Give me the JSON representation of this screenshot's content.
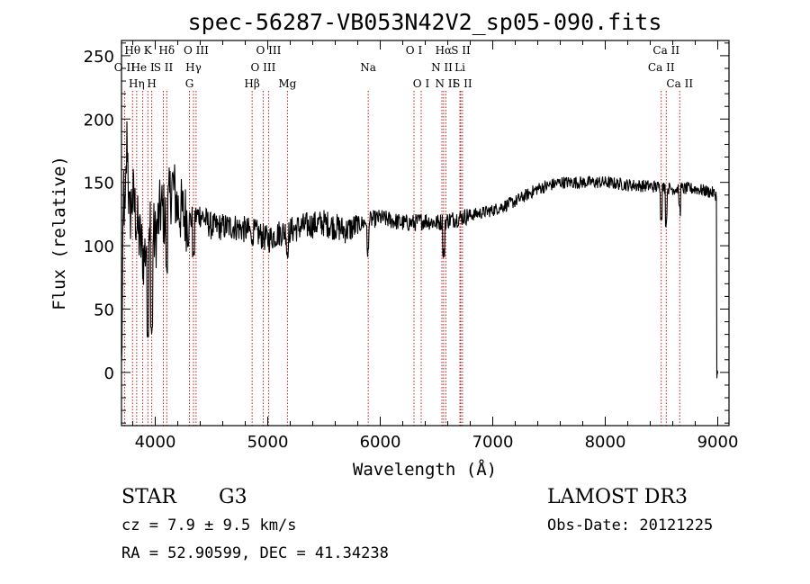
{
  "chart_data": {
    "type": "line",
    "title": "spec-56287-VB053N42V2_sp05-090.fits",
    "xlabel": "Wavelength (Å)",
    "ylabel": "Flux (relative)",
    "xlim": [
      3700,
      9100
    ],
    "ylim": [
      -42,
      262
    ],
    "xticks": [
      4000,
      5000,
      6000,
      7000,
      8000,
      9000
    ],
    "yticks": [
      0,
      50,
      100,
      150,
      200,
      250
    ],
    "series": [
      {
        "name": "flux",
        "anchors": [
          [
            3700,
            0
          ],
          [
            3710,
            70
          ],
          [
            3720,
            150
          ],
          [
            3730,
            110
          ],
          [
            3750,
            190
          ],
          [
            3770,
            120
          ],
          [
            3800,
            140
          ],
          [
            3850,
            110
          ],
          [
            3900,
            90
          ],
          [
            3950,
            120
          ],
          [
            4000,
            105
          ],
          [
            4050,
            130
          ],
          [
            4100,
            120
          ],
          [
            4150,
            150
          ],
          [
            4200,
            130
          ],
          [
            4300,
            120
          ],
          [
            4400,
            125
          ],
          [
            4500,
            115
          ],
          [
            4700,
            115
          ],
          [
            4900,
            110
          ],
          [
            5000,
            105
          ],
          [
            5100,
            110
          ],
          [
            5200,
            112
          ],
          [
            5300,
            115
          ],
          [
            5500,
            118
          ],
          [
            5700,
            112
          ],
          [
            5900,
            120
          ],
          [
            6000,
            122
          ],
          [
            6200,
            118
          ],
          [
            6300,
            118
          ],
          [
            6400,
            120
          ],
          [
            6500,
            118
          ],
          [
            6600,
            120
          ],
          [
            6700,
            122
          ],
          [
            6800,
            124
          ],
          [
            7000,
            128
          ],
          [
            7200,
            135
          ],
          [
            7400,
            145
          ],
          [
            7600,
            150
          ],
          [
            7800,
            150
          ],
          [
            8000,
            150
          ],
          [
            8200,
            148
          ],
          [
            8400,
            147
          ],
          [
            8600,
            145
          ],
          [
            8800,
            145
          ],
          [
            8950,
            142
          ],
          [
            8990,
            140
          ],
          [
            9000,
            100
          ]
        ],
        "dips": [
          [
            3934,
            30
          ],
          [
            3969,
            35
          ],
          [
            4102,
            80
          ],
          [
            4340,
            95
          ],
          [
            4861,
            105
          ],
          [
            5175,
            95
          ],
          [
            5890,
            95
          ],
          [
            6563,
            95
          ],
          [
            8498,
            125
          ],
          [
            8542,
            120
          ],
          [
            8662,
            128
          ],
          [
            9000,
            0
          ]
        ]
      }
    ],
    "lines": [
      {
        "label": "O II",
        "wl": 3727,
        "row": 2
      },
      {
        "label": "Hθ",
        "wl": 3798,
        "row": 1
      },
      {
        "label": "Hη",
        "wl": 3835,
        "row": 3
      },
      {
        "label": "He I",
        "wl": 3889,
        "row": 2
      },
      {
        "label": "K",
        "wl": 3934,
        "row": 1
      },
      {
        "label": "S II",
        "wl": 4072,
        "row": 2
      },
      {
        "label": "H",
        "wl": 3969,
        "row": 3
      },
      {
        "label": "Hδ",
        "wl": 4102,
        "row": 1
      },
      {
        "label": "G",
        "wl": 4304,
        "row": 3
      },
      {
        "label": "O III",
        "wl": 4363,
        "row": 1
      },
      {
        "label": "Hγ",
        "wl": 4340,
        "row": 2
      },
      {
        "label": "Hβ",
        "wl": 4861,
        "row": 3
      },
      {
        "label": "O III",
        "wl": 5007,
        "row": 1
      },
      {
        "label": "O III",
        "wl": 4959,
        "row": 2
      },
      {
        "label": "Mg",
        "wl": 5175,
        "row": 3
      },
      {
        "label": "Na",
        "wl": 5893,
        "row": 2
      },
      {
        "label": "O I",
        "wl": 6300,
        "row": 1
      },
      {
        "label": "O I",
        "wl": 6364,
        "row": 3
      },
      {
        "label": "Hα",
        "wl": 6563,
        "row": 1
      },
      {
        "label": "N II",
        "wl": 6548,
        "row": 2
      },
      {
        "label": "N II",
        "wl": 6583,
        "row": 3
      },
      {
        "label": "S II",
        "wl": 6716,
        "row": 1
      },
      {
        "label": "Li",
        "wl": 6708,
        "row": 2
      },
      {
        "label": "S II",
        "wl": 6731,
        "row": 3
      },
      {
        "label": "Ca II",
        "wl": 8542,
        "row": 1
      },
      {
        "label": "Ca II",
        "wl": 8498,
        "row": 2
      },
      {
        "label": "Ca II",
        "wl": 8662,
        "row": 3
      }
    ]
  },
  "info": {
    "object_class": "STAR",
    "subclass": "G3",
    "survey": "LAMOST DR3",
    "cz": "cz = 7.9 ± 9.5 km/s",
    "obs_date": "Obs-Date: 20121225",
    "radec": "RA =  52.90599, DEC =  41.34238"
  }
}
